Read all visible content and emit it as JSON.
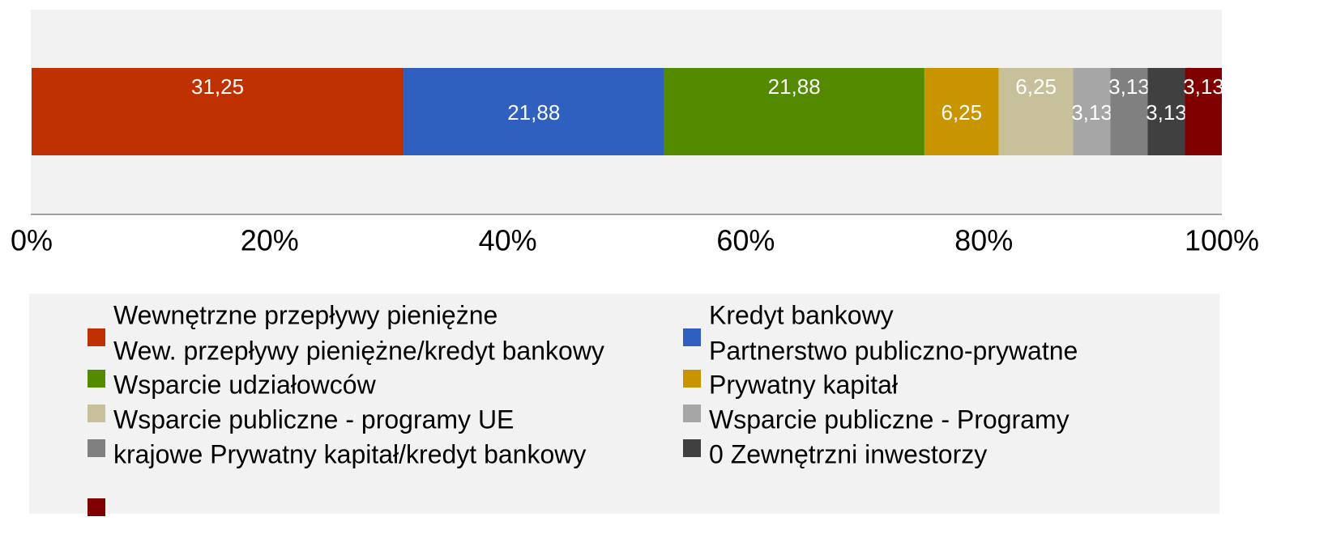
{
  "chart_data": {
    "type": "stacked_bar_horizontal",
    "series": [
      {
        "name": [
          "Wewnętrzne przepływy pieniężne",
          "Wew. przepływy pieniężne/kredyt bankowy"
        ],
        "color": "#bf3100",
        "values": [
          31.25
        ],
        "value_labels": [
          "31,25"
        ]
      },
      {
        "name": [
          "Kredyt bankowy",
          "Partnerstwo publiczno-prywatne"
        ],
        "color": "#2f5fbf",
        "values": [
          21.88
        ],
        "value_labels": [
          "21,88"
        ]
      },
      {
        "name": [
          "Wsparcie udziałowców"
        ],
        "color": "#538a00",
        "values": [
          21.88
        ],
        "value_labels": [
          "21,88"
        ]
      },
      {
        "name": [
          "Prywatny kapitał"
        ],
        "color": "#c89500",
        "values": [
          6.25
        ],
        "value_labels": [
          "6,25"
        ]
      },
      {
        "name": [
          "Wsparcie publiczne - programy UE"
        ],
        "color": "#c8c09a",
        "values": [
          6.25
        ],
        "value_labels": [
          "6,25"
        ]
      },
      {
        "name": [
          "Wsparcie publiczne - Programy"
        ],
        "color": "#a6a6a6",
        "values": [
          3.13
        ],
        "value_labels": [
          "3,13"
        ]
      },
      {
        "name": [
          "krajowe Prywatny kapitał/kredyt bankowy"
        ],
        "color": "#808080",
        "values": [
          3.13
        ],
        "value_labels": [
          "3,13"
        ]
      },
      {
        "name": [
          "0 Zewnętrzni inwestorzy"
        ],
        "color": "#404040",
        "values": [
          3.13
        ],
        "value_labels": [
          "3,13"
        ]
      },
      {
        "name": null,
        "color": "#800000",
        "values": [
          3.13
        ],
        "value_labels": [
          "3,13"
        ]
      }
    ],
    "xlim": [
      0,
      100
    ],
    "xticks": [
      {
        "value": 0,
        "label": "0%"
      },
      {
        "value": 20,
        "label": "20%"
      },
      {
        "value": 40,
        "label": "40%"
      },
      {
        "value": 60,
        "label": "60%"
      },
      {
        "value": 80,
        "label": "80%"
      },
      {
        "value": 100,
        "label": "100%"
      }
    ],
    "legend": "bottom"
  }
}
